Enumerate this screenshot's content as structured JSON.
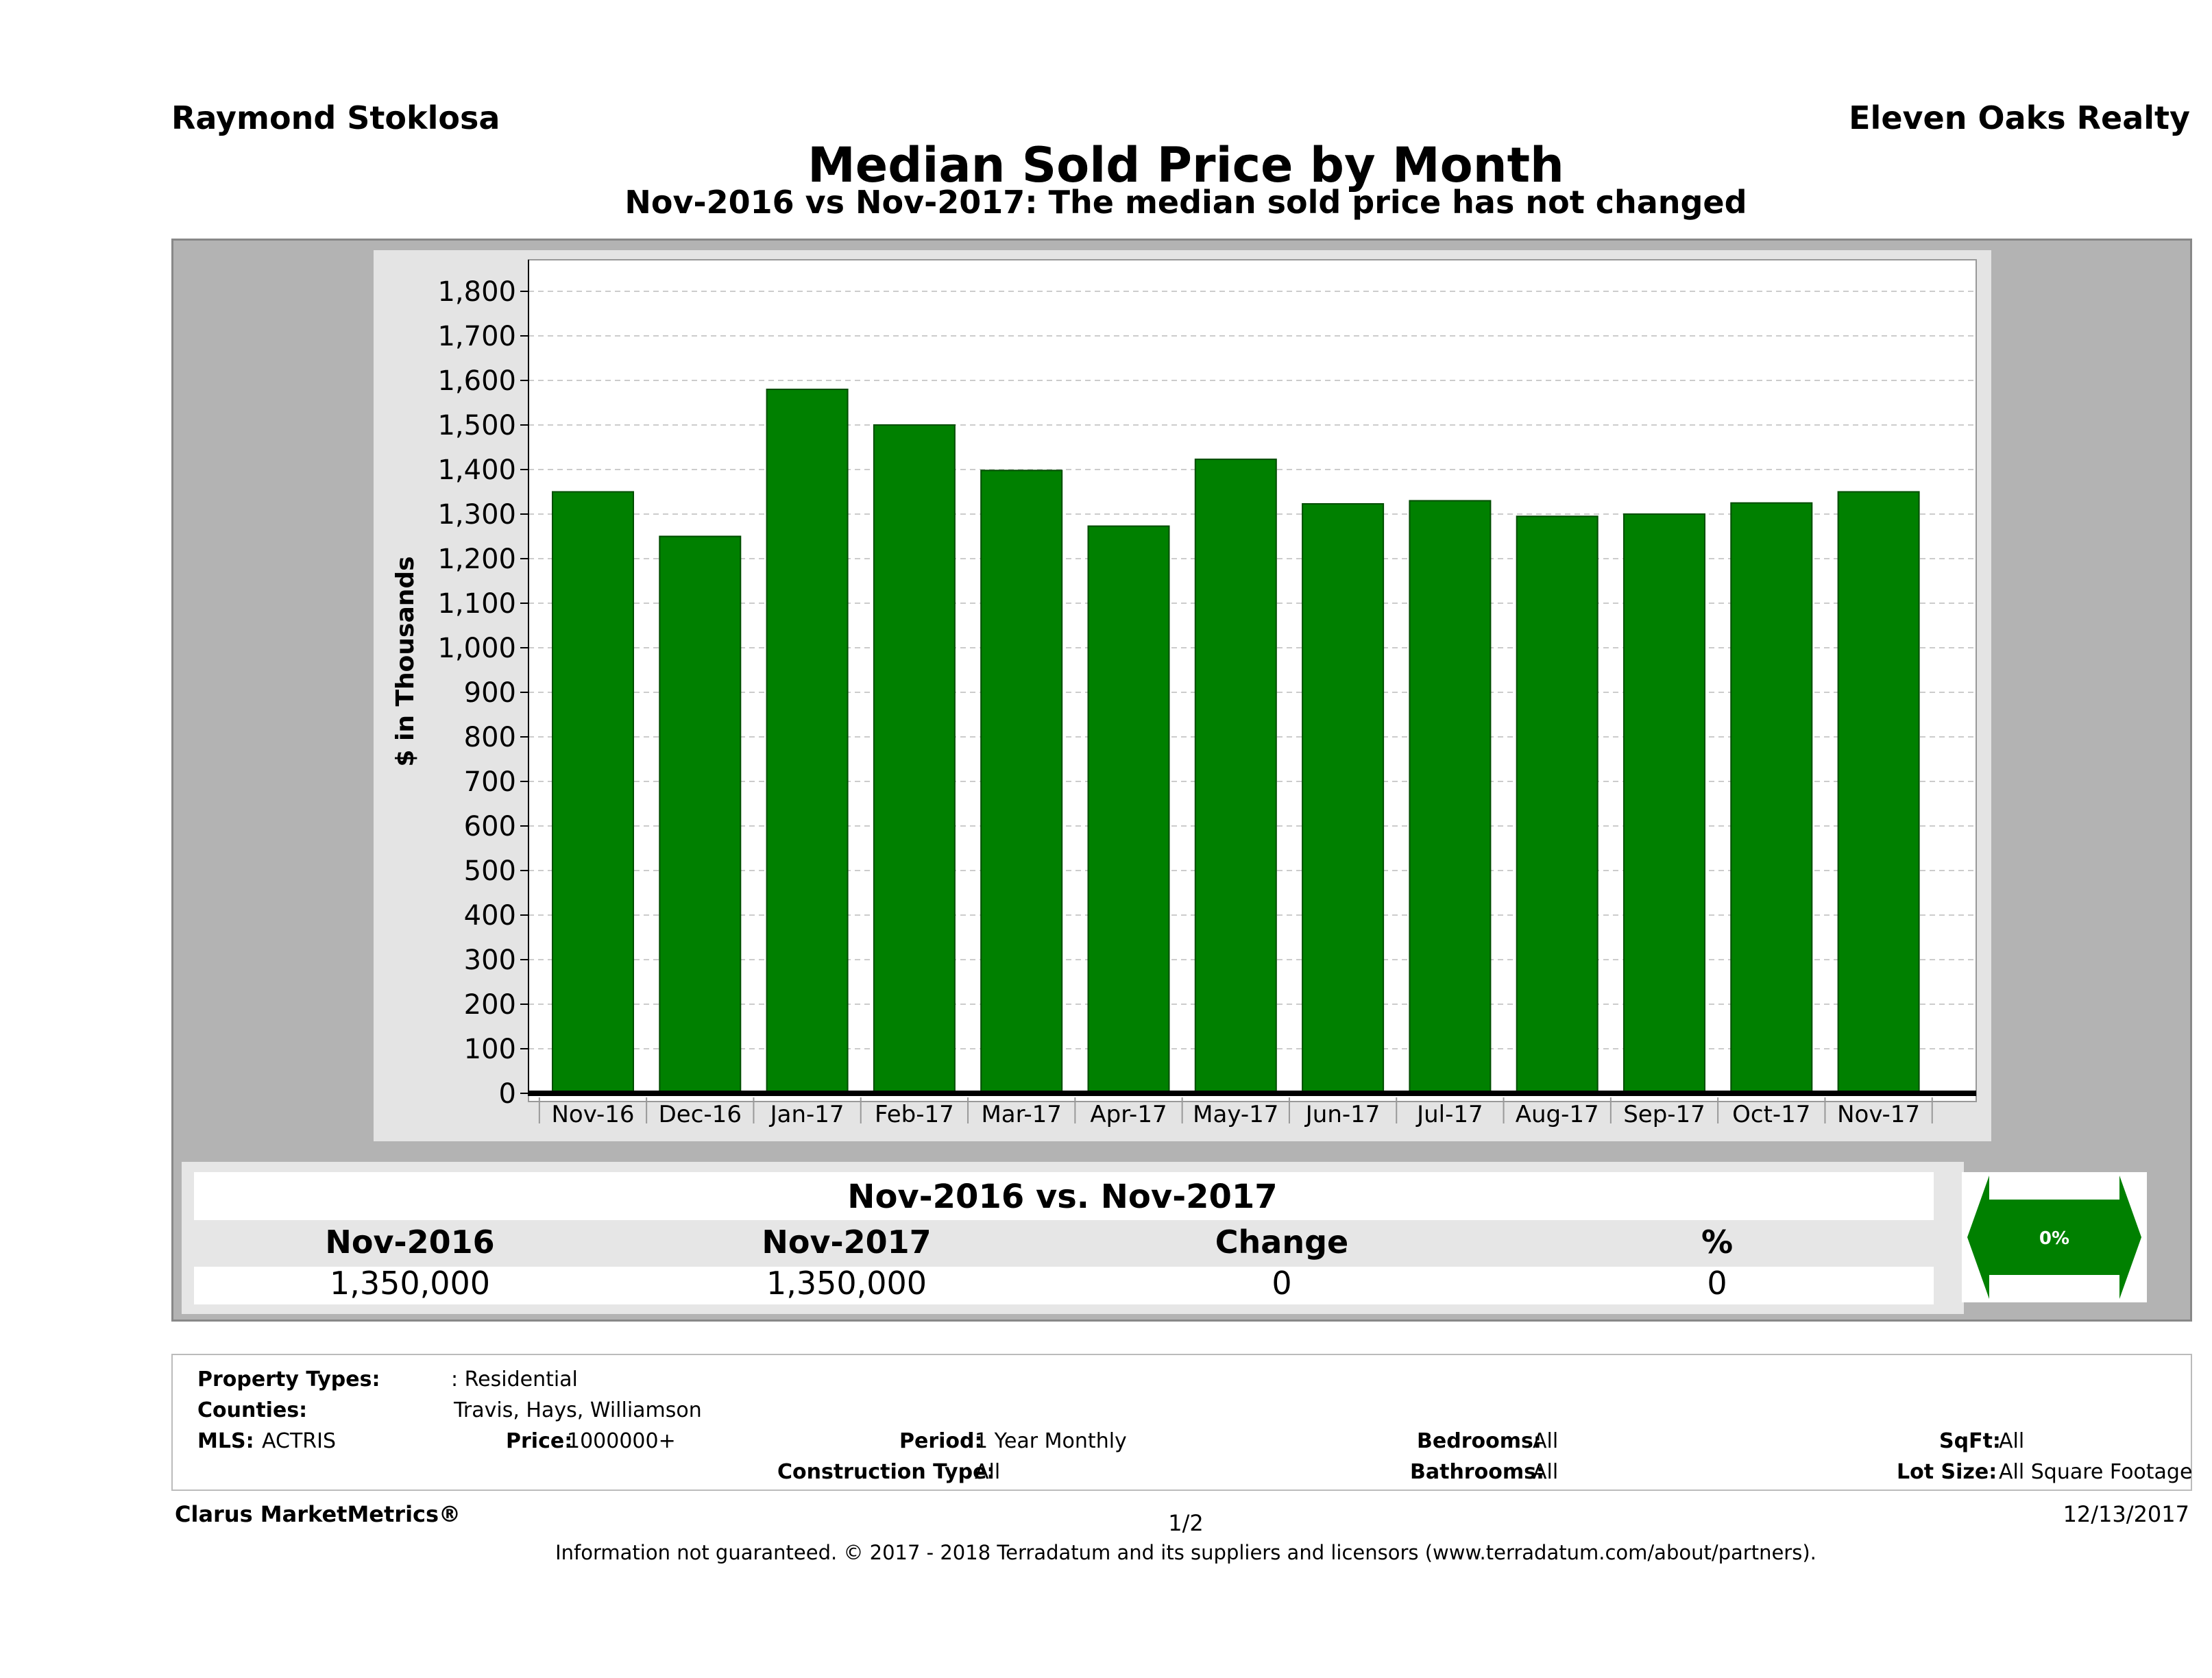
{
  "header": {
    "agent": "Raymond Stoklosa",
    "brokerage": "Eleven Oaks Realty",
    "title": "Median Sold Price by Month",
    "subtitle": "Nov-2016 vs Nov-2017: The median sold price has not changed"
  },
  "chart_data": {
    "type": "bar",
    "title": "Median Sold Price by Month",
    "ylabel": "$ in Thousands",
    "xlabel": "",
    "ylim": [
      0,
      1800
    ],
    "yticks": [
      0,
      100,
      200,
      300,
      400,
      500,
      600,
      700,
      800,
      900,
      1000,
      1100,
      1200,
      1300,
      1400,
      1500,
      1600,
      1700,
      1800
    ],
    "ytick_labels": [
      "0",
      "100",
      "200",
      "300",
      "400",
      "500",
      "600",
      "700",
      "800",
      "900",
      "1,000",
      "1,100",
      "1,200",
      "1,300",
      "1,400",
      "1,500",
      "1,600",
      "1,700",
      "1,800"
    ],
    "categories": [
      "Nov-16",
      "Dec-16",
      "Jan-17",
      "Feb-17",
      "Mar-17",
      "Apr-17",
      "May-17",
      "Jun-17",
      "Jul-17",
      "Aug-17",
      "Sep-17",
      "Oct-17",
      "Nov-17"
    ],
    "values": [
      1350,
      1250,
      1580,
      1500,
      1398,
      1273,
      1423,
      1323,
      1330,
      1295,
      1300,
      1325,
      1350
    ],
    "grid": true,
    "bar_color": "#008000"
  },
  "summary": {
    "title": "Nov-2016 vs. Nov-2017",
    "headers": [
      "Nov-2016",
      "Nov-2017",
      "Change",
      "%"
    ],
    "values": [
      "1,350,000",
      "1,350,000",
      "0",
      "0"
    ],
    "badge": "0%"
  },
  "details": {
    "property_types_label": "Property Types:",
    "property_types_value": ": Residential",
    "counties_label": "Counties:",
    "counties_value": "Travis, Hays, Williamson",
    "mls_label": "MLS:",
    "mls_value": "ACTRIS",
    "price_label": "Price:",
    "price_value": "1000000+",
    "period_label": "Period:",
    "period_value": "1 Year Monthly",
    "construction_label": "Construction Type:",
    "construction_value": "All",
    "bedrooms_label": "Bedrooms:",
    "bedrooms_value": "All",
    "bathrooms_label": "Bathrooms:",
    "bathrooms_value": "All",
    "sqft_label": "SqFt:",
    "sqft_value": "All",
    "lot_label": "Lot Size:",
    "lot_value": "All Square Footage"
  },
  "footer": {
    "product": "Clarus MarketMetrics®",
    "page": "1/2",
    "date": "12/13/2017",
    "disclaimer": "Information not guaranteed. © 2017 - 2018 Terradatum and its suppliers and licensors (www.terradatum.com/about/partners)."
  },
  "colors": {
    "bar": "#008000",
    "frame": "#b3b3b3",
    "grid": "#cccccc"
  }
}
